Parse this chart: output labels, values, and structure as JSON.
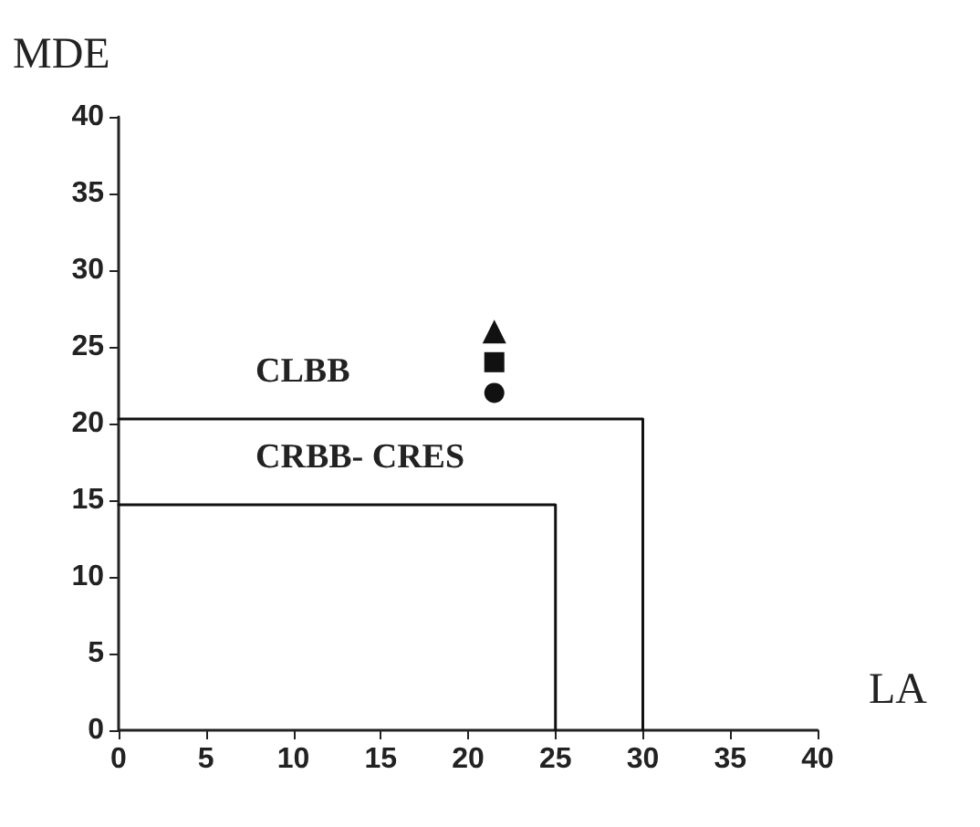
{
  "chart_data": {
    "type": "line",
    "xlabel": "LA",
    "ylabel": "MDE",
    "xlim": [
      0,
      40
    ],
    "ylim": [
      0,
      40
    ],
    "xticks": [
      0,
      5,
      10,
      15,
      20,
      25,
      30,
      35,
      40
    ],
    "yticks": [
      0,
      5,
      10,
      15,
      20,
      25,
      30,
      35,
      40
    ],
    "grid": false,
    "legend": false,
    "series": [
      {
        "name": "CLBB",
        "color": "#111111",
        "x": [
          0,
          30,
          30
        ],
        "values": [
          20.3,
          20.3,
          0
        ],
        "marker": "none",
        "line_style": "solid"
      },
      {
        "name": "CRBB- CRES",
        "color": "#111111",
        "x": [
          0,
          25,
          25
        ],
        "values": [
          14.7,
          14.7,
          0
        ],
        "marker": "none",
        "line_style": "solid"
      },
      {
        "type": "scatter",
        "color": "#111111",
        "x": [
          21.5
        ],
        "values": [
          26
        ],
        "marker": "triangle"
      },
      {
        "type": "scatter",
        "color": "#111111",
        "x": [
          21.5
        ],
        "values": [
          24
        ],
        "marker": "square"
      },
      {
        "type": "scatter",
        "color": "#111111",
        "x": [
          21.5
        ],
        "values": [
          22
        ],
        "marker": "circle"
      }
    ]
  }
}
